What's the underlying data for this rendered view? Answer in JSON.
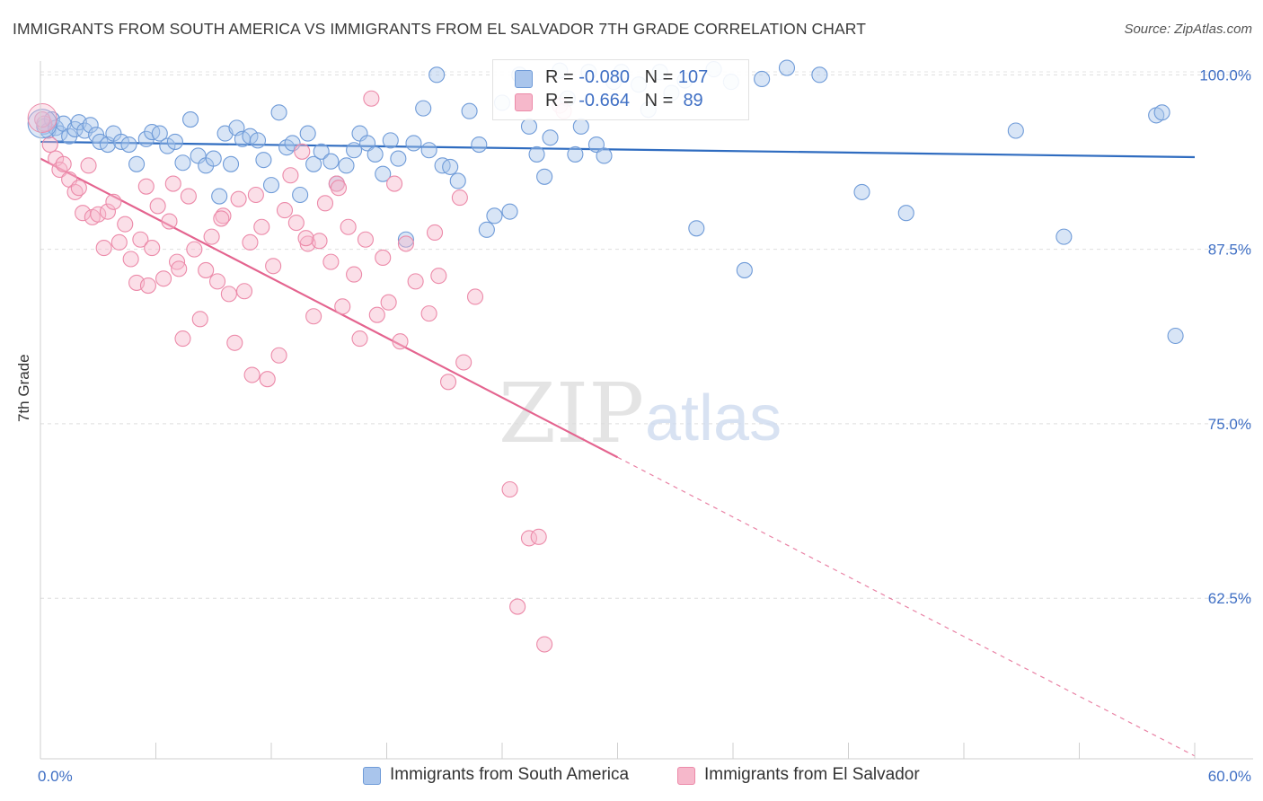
{
  "title": "IMMIGRANTS FROM SOUTH AMERICA VS IMMIGRANTS FROM EL SALVADOR 7TH GRADE CORRELATION CHART",
  "source": "Source: ZipAtlas.com",
  "watermark": {
    "zip": "ZIP",
    "atlas": "atlas"
  },
  "chart_data": {
    "type": "scatter",
    "ylabel": "7th Grade",
    "xlim": [
      0,
      60
    ],
    "ylim": [
      51,
      101.5
    ],
    "x_tick_labels": [
      "0.0%",
      "60.0%"
    ],
    "y_ticks": [
      62.5,
      75.0,
      87.5,
      100.0
    ],
    "y_tick_labels": [
      "62.5%",
      "75.0%",
      "87.5%",
      "100.0%"
    ],
    "grid": "horizontal dashed",
    "legend_position": "top-center",
    "series": [
      {
        "name": "Immigrants from South America",
        "color": "#a9c5ec",
        "stroke": "#6f9bd8",
        "line_color": "#2f6cc0",
        "R": "-0.080",
        "N": "107",
        "trend": {
          "x": [
            0,
            60
          ],
          "y": [
            95.2,
            94.1
          ],
          "style": "solid"
        },
        "points": [
          [
            0.2,
            96.3
          ],
          [
            0.4,
            96.0
          ],
          [
            0.6,
            96.8
          ],
          [
            0.8,
            96.2
          ],
          [
            1.0,
            95.8
          ],
          [
            1.2,
            96.5
          ],
          [
            1.5,
            95.6
          ],
          [
            1.8,
            96.1
          ],
          [
            2.0,
            96.6
          ],
          [
            2.3,
            96.0
          ],
          [
            2.6,
            96.4
          ],
          [
            2.9,
            95.7
          ],
          [
            3.1,
            95.2
          ],
          [
            3.5,
            95.0
          ],
          [
            3.8,
            95.8
          ],
          [
            4.2,
            95.2
          ],
          [
            4.6,
            95.0
          ],
          [
            5.0,
            93.6
          ],
          [
            5.5,
            95.4
          ],
          [
            5.8,
            95.9
          ],
          [
            6.2,
            95.8
          ],
          [
            6.6,
            94.9
          ],
          [
            7.0,
            95.2
          ],
          [
            7.4,
            93.7
          ],
          [
            7.8,
            96.8
          ],
          [
            8.2,
            94.2
          ],
          [
            8.6,
            93.5
          ],
          [
            9.0,
            94.0
          ],
          [
            9.3,
            91.3
          ],
          [
            9.6,
            95.8
          ],
          [
            9.9,
            93.6
          ],
          [
            10.2,
            96.2
          ],
          [
            10.5,
            95.4
          ],
          [
            10.9,
            95.6
          ],
          [
            11.3,
            95.3
          ],
          [
            11.6,
            93.9
          ],
          [
            12.0,
            92.1
          ],
          [
            12.4,
            97.3
          ],
          [
            12.8,
            94.8
          ],
          [
            13.1,
            95.1
          ],
          [
            13.5,
            91.4
          ],
          [
            13.9,
            95.8
          ],
          [
            14.2,
            93.6
          ],
          [
            14.6,
            94.5
          ],
          [
            15.1,
            93.8
          ],
          [
            15.4,
            92.2
          ],
          [
            15.9,
            93.5
          ],
          [
            16.3,
            94.6
          ],
          [
            16.6,
            95.8
          ],
          [
            17.0,
            95.1
          ],
          [
            17.4,
            94.3
          ],
          [
            17.8,
            92.9
          ],
          [
            18.2,
            95.3
          ],
          [
            18.6,
            94.0
          ],
          [
            19.0,
            88.2
          ],
          [
            19.4,
            95.1
          ],
          [
            19.9,
            97.6
          ],
          [
            20.2,
            94.6
          ],
          [
            20.6,
            100.0
          ],
          [
            20.9,
            93.5
          ],
          [
            21.3,
            93.4
          ],
          [
            21.7,
            92.4
          ],
          [
            22.3,
            97.4
          ],
          [
            22.8,
            95.0
          ],
          [
            23.2,
            88.9
          ],
          [
            23.6,
            89.9
          ],
          [
            24.0,
            98.0
          ],
          [
            24.4,
            90.2
          ],
          [
            24.9,
            100.0
          ],
          [
            25.4,
            96.3
          ],
          [
            25.8,
            94.3
          ],
          [
            26.2,
            92.7
          ],
          [
            26.5,
            95.5
          ],
          [
            27.0,
            100.3
          ],
          [
            27.4,
            98.3
          ],
          [
            27.8,
            94.3
          ],
          [
            28.1,
            96.3
          ],
          [
            28.5,
            100.2
          ],
          [
            28.9,
            95.0
          ],
          [
            29.3,
            94.2
          ],
          [
            29.8,
            99.5
          ],
          [
            30.2,
            100.2
          ],
          [
            31.1,
            99.3
          ],
          [
            31.6,
            97.5
          ],
          [
            32.2,
            100.2
          ],
          [
            32.8,
            98.7
          ],
          [
            33.5,
            99.6
          ],
          [
            34.1,
            89.0
          ],
          [
            35.0,
            100.4
          ],
          [
            35.9,
            99.5
          ],
          [
            36.6,
            86.0
          ],
          [
            37.5,
            99.7
          ],
          [
            38.8,
            100.5
          ],
          [
            40.5,
            100.0
          ],
          [
            42.7,
            91.6
          ],
          [
            45.0,
            90.1
          ],
          [
            50.7,
            96.0
          ],
          [
            53.2,
            88.4
          ],
          [
            59.0,
            81.3
          ],
          [
            58.0,
            97.1
          ],
          [
            58.3,
            97.3
          ]
        ]
      },
      {
        "name": "Immigrants from El Salvador",
        "color": "#f6b8cb",
        "stroke": "#ec8aa9",
        "line_color": "#e4648f",
        "R": "-0.664",
        "N": "89",
        "trend": {
          "x": [
            0,
            30
          ],
          "y": [
            94.0,
            72.6
          ],
          "style": "solid"
        },
        "trend_ext": {
          "x": [
            30,
            60
          ],
          "y": [
            72.6,
            51.2
          ],
          "style": "dashed"
        },
        "points": [
          [
            0.2,
            96.5
          ],
          [
            0.5,
            95.0
          ],
          [
            0.8,
            94.0
          ],
          [
            1.0,
            93.2
          ],
          [
            1.2,
            93.6
          ],
          [
            1.5,
            92.5
          ],
          [
            1.8,
            91.6
          ],
          [
            2.0,
            91.9
          ],
          [
            2.2,
            90.1
          ],
          [
            2.5,
            93.5
          ],
          [
            2.7,
            89.8
          ],
          [
            3.0,
            90.0
          ],
          [
            3.3,
            87.6
          ],
          [
            3.5,
            90.2
          ],
          [
            3.8,
            90.9
          ],
          [
            4.1,
            88.0
          ],
          [
            4.4,
            89.3
          ],
          [
            4.7,
            86.8
          ],
          [
            5.0,
            85.1
          ],
          [
            5.2,
            88.2
          ],
          [
            5.5,
            92.0
          ],
          [
            5.8,
            87.6
          ],
          [
            6.1,
            90.6
          ],
          [
            6.4,
            85.4
          ],
          [
            6.7,
            89.5
          ],
          [
            6.9,
            92.2
          ],
          [
            7.1,
            86.6
          ],
          [
            7.4,
            81.1
          ],
          [
            7.7,
            91.3
          ],
          [
            8.0,
            87.5
          ],
          [
            8.3,
            82.5
          ],
          [
            8.6,
            86.0
          ],
          [
            8.9,
            88.4
          ],
          [
            9.2,
            85.2
          ],
          [
            9.5,
            89.9
          ],
          [
            9.8,
            84.3
          ],
          [
            10.1,
            80.8
          ],
          [
            10.3,
            91.1
          ],
          [
            10.6,
            84.5
          ],
          [
            10.9,
            88.0
          ],
          [
            11.2,
            91.4
          ],
          [
            11.5,
            89.1
          ],
          [
            11.8,
            78.2
          ],
          [
            12.1,
            86.3
          ],
          [
            12.4,
            79.9
          ],
          [
            12.7,
            90.3
          ],
          [
            13.0,
            92.8
          ],
          [
            13.3,
            89.4
          ],
          [
            13.6,
            94.5
          ],
          [
            13.9,
            87.9
          ],
          [
            14.2,
            82.7
          ],
          [
            14.5,
            88.1
          ],
          [
            14.8,
            90.8
          ],
          [
            15.1,
            86.6
          ],
          [
            15.4,
            92.2
          ],
          [
            15.7,
            83.4
          ],
          [
            16.0,
            89.1
          ],
          [
            16.3,
            85.7
          ],
          [
            16.6,
            81.1
          ],
          [
            16.9,
            88.2
          ],
          [
            17.2,
            98.3
          ],
          [
            17.5,
            82.8
          ],
          [
            17.8,
            86.9
          ],
          [
            18.1,
            83.7
          ],
          [
            18.4,
            92.2
          ],
          [
            18.7,
            80.9
          ],
          [
            19.0,
            87.9
          ],
          [
            19.5,
            85.2
          ],
          [
            20.2,
            82.9
          ],
          [
            20.7,
            85.6
          ],
          [
            21.2,
            78.0
          ],
          [
            22.0,
            79.4
          ],
          [
            22.6,
            84.1
          ],
          [
            21.8,
            91.2
          ],
          [
            20.5,
            88.7
          ],
          [
            9.4,
            89.7
          ],
          [
            11.0,
            78.5
          ],
          [
            7.2,
            86.1
          ],
          [
            5.6,
            84.9
          ],
          [
            13.8,
            88.3
          ],
          [
            15.5,
            91.9
          ],
          [
            24.4,
            70.3
          ],
          [
            24.8,
            61.9
          ],
          [
            25.4,
            66.8
          ],
          [
            26.2,
            59.2
          ],
          [
            25.9,
            66.9
          ],
          [
            27.0,
            97.8
          ],
          [
            27.2,
            97.4
          ],
          [
            0.1,
            96.8
          ]
        ]
      }
    ]
  }
}
